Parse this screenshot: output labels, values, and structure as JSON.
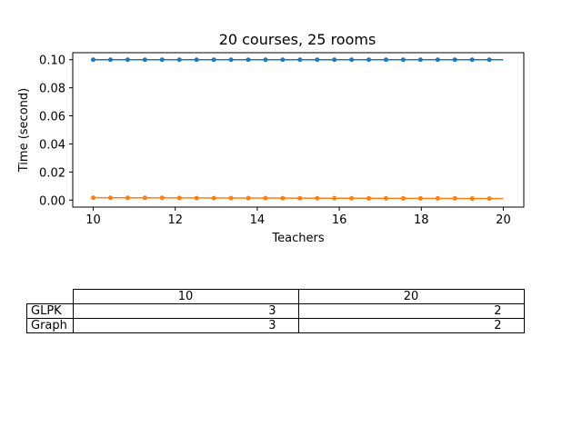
{
  "chart_data": {
    "type": "line",
    "title": "20 courses, 25 rooms",
    "xlabel": "Teachers",
    "ylabel": "Time (second)",
    "xlim": [
      9.5,
      20.5
    ],
    "ylim": [
      -0.005,
      0.105
    ],
    "xticks": [
      10,
      12,
      14,
      16,
      18,
      20
    ],
    "yticks": [
      0.0,
      0.02,
      0.04,
      0.06,
      0.08,
      0.1
    ],
    "xtick_labels": [
      "10",
      "12",
      "14",
      "16",
      "18",
      "20"
    ],
    "ytick_labels": [
      "0.00",
      "0.02",
      "0.04",
      "0.06",
      "0.08",
      "0.10"
    ],
    "grid": false,
    "series": [
      {
        "color": "#1f77b4",
        "x": [
          10.0,
          10.42,
          10.84,
          11.26,
          11.68,
          12.1,
          12.52,
          12.94,
          13.36,
          13.78,
          14.2,
          14.62,
          15.04,
          15.46,
          15.88,
          16.3,
          16.72,
          17.14,
          17.56,
          17.98,
          18.4,
          18.82,
          19.24,
          19.66
        ],
        "y": [
          0.1,
          0.1,
          0.1,
          0.1,
          0.1,
          0.1,
          0.1,
          0.1,
          0.1,
          0.1,
          0.1,
          0.1,
          0.1,
          0.1,
          0.1,
          0.1,
          0.1,
          0.1,
          0.1,
          0.1,
          0.1,
          0.1,
          0.1,
          0.1
        ],
        "fit_line": [
          [
            10,
            0.1
          ],
          [
            20,
            0.1
          ]
        ]
      },
      {
        "color": "#ff7f0e",
        "x": [
          10.0,
          10.42,
          10.84,
          11.26,
          11.68,
          12.1,
          12.52,
          12.94,
          13.36,
          13.78,
          14.2,
          14.62,
          15.04,
          15.46,
          15.88,
          16.3,
          16.72,
          17.14,
          17.56,
          17.98,
          18.4,
          18.82,
          19.24,
          19.66
        ],
        "y": [
          0.0017,
          0.0016,
          0.0016,
          0.0016,
          0.0016,
          0.0015,
          0.0014,
          0.0014,
          0.0014,
          0.0014,
          0.0014,
          0.0013,
          0.0013,
          0.0013,
          0.0013,
          0.0013,
          0.0012,
          0.0012,
          0.0012,
          0.0012,
          0.0012,
          0.0012,
          0.0011,
          0.0011
        ],
        "fit_line": [
          [
            10,
            0.0017
          ],
          [
            20,
            0.0011
          ]
        ]
      }
    ]
  },
  "table": {
    "columns": [
      "10",
      "20"
    ],
    "rows": [
      {
        "label": "GLPK",
        "values": [
          "3",
          "2"
        ]
      },
      {
        "label": "Graph",
        "values": [
          "3",
          "2"
        ]
      }
    ]
  }
}
